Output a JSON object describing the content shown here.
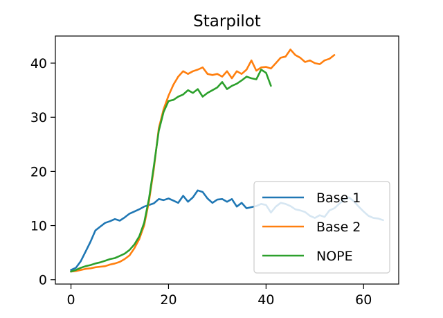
{
  "chart_data": {
    "type": "line",
    "title": "Starpilot",
    "xlabel": "",
    "ylabel": "",
    "xlim": [
      -3.2,
      67.2
    ],
    "ylim": [
      -0.8,
      45.0
    ],
    "xticks": [
      0,
      20,
      40,
      60
    ],
    "yticks": [
      0,
      10,
      20,
      30,
      40
    ],
    "grid": false,
    "legend": {
      "placement": "lower-right"
    },
    "series": [
      {
        "name": "Base 1",
        "color": "#1f77b4",
        "x": [
          0,
          1,
          2,
          3,
          4,
          5,
          6,
          7,
          8,
          9,
          10,
          11,
          12,
          13,
          14,
          15,
          16,
          17,
          18,
          19,
          20,
          21,
          22,
          23,
          24,
          25,
          26,
          27,
          28,
          29,
          30,
          31,
          32,
          33,
          34,
          35,
          36,
          37,
          38,
          39,
          40,
          41,
          42,
          43,
          44,
          45,
          46,
          47,
          48,
          49,
          50,
          51,
          52,
          53,
          54,
          55,
          56,
          57,
          58,
          59,
          60,
          61,
          62,
          63,
          64
        ],
        "values": [
          1.8,
          2.2,
          3.4,
          5.2,
          7.0,
          9.1,
          9.8,
          10.5,
          10.8,
          11.2,
          10.9,
          11.5,
          12.2,
          12.6,
          13.0,
          13.5,
          13.8,
          14.1,
          14.9,
          14.7,
          15.0,
          14.6,
          14.2,
          15.5,
          14.4,
          15.2,
          16.5,
          16.2,
          15.0,
          14.2,
          14.8,
          14.9,
          14.4,
          14.9,
          13.5,
          14.2,
          13.2,
          13.4,
          13.6,
          14.0,
          13.8,
          12.4,
          13.5,
          14.2,
          14.0,
          13.6,
          13.0,
          12.8,
          12.5,
          11.8,
          11.4,
          11.9,
          11.6,
          12.8,
          13.2,
          14.0,
          14.8,
          15.2,
          14.5,
          13.5,
          12.6,
          11.8,
          11.4,
          11.3,
          11.0
        ]
      },
      {
        "name": "Base 2",
        "color": "#ff7f0e",
        "x": [
          0,
          1,
          2,
          3,
          4,
          5,
          6,
          7,
          8,
          9,
          10,
          11,
          12,
          13,
          14,
          15,
          16,
          17,
          18,
          19,
          20,
          21,
          22,
          23,
          24,
          25,
          26,
          27,
          28,
          29,
          30,
          31,
          32,
          33,
          34,
          35,
          36,
          37,
          38,
          39,
          40,
          41,
          42,
          43,
          44,
          45,
          46,
          47,
          48,
          49,
          50,
          51,
          52,
          53,
          54
        ],
        "values": [
          1.5,
          1.6,
          1.8,
          2.0,
          2.1,
          2.3,
          2.4,
          2.5,
          2.8,
          3.0,
          3.3,
          3.8,
          4.5,
          5.8,
          7.5,
          10.0,
          14.5,
          20.5,
          28.0,
          31.5,
          34.0,
          36.0,
          37.5,
          38.5,
          38.0,
          38.5,
          38.8,
          39.2,
          38.0,
          37.8,
          38.0,
          37.5,
          38.5,
          37.2,
          38.5,
          38.0,
          38.8,
          40.5,
          38.6,
          39.2,
          39.3,
          39.0,
          40.0,
          41.0,
          41.2,
          42.5,
          41.5,
          41.0,
          40.2,
          40.5,
          40.0,
          39.8,
          40.5,
          40.8,
          41.5
        ]
      },
      {
        "name": "NOPE",
        "color": "#2ca02c",
        "x": [
          0,
          1,
          2,
          3,
          4,
          5,
          6,
          7,
          8,
          9,
          10,
          11,
          12,
          13,
          14,
          15,
          16,
          17,
          18,
          19,
          20,
          21,
          22,
          23,
          24,
          25,
          26,
          27,
          28,
          29,
          30,
          31,
          32,
          33,
          34,
          35,
          36,
          37,
          38,
          39,
          40,
          41
        ],
        "values": [
          1.5,
          1.8,
          2.2,
          2.5,
          2.7,
          3.0,
          3.2,
          3.5,
          3.8,
          4.0,
          4.4,
          4.8,
          5.5,
          6.5,
          8.0,
          10.5,
          15.0,
          21.0,
          27.5,
          31.0,
          33.0,
          33.2,
          33.8,
          34.2,
          35.0,
          34.5,
          35.2,
          33.8,
          34.5,
          35.0,
          35.5,
          36.5,
          35.2,
          35.8,
          36.2,
          36.8,
          37.5,
          37.2,
          37.0,
          38.8,
          38.2,
          35.8
        ]
      }
    ]
  }
}
